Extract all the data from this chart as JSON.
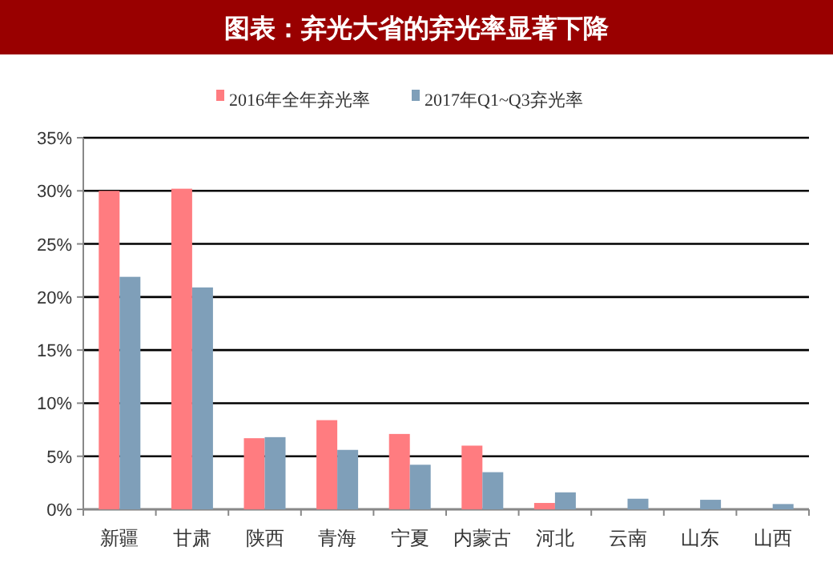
{
  "chart_data": {
    "type": "bar",
    "title": "图表：弃光大省的弃光率显著下降",
    "categories": [
      "新疆",
      "甘肃",
      "陕西",
      "青海",
      "宁夏",
      "内蒙古",
      "河北",
      "云南",
      "山东",
      "山西"
    ],
    "series": [
      {
        "name": "2016年全年弃光率",
        "color": "#ff7c80",
        "values": [
          30.0,
          30.2,
          6.7,
          8.4,
          7.1,
          6.0,
          0.6,
          null,
          null,
          null
        ]
      },
      {
        "name": "2017年Q1~Q3弃光率",
        "color": "#7f9fb9",
        "values": [
          21.9,
          20.9,
          6.8,
          5.6,
          4.2,
          3.5,
          1.6,
          1.0,
          0.9,
          0.5
        ]
      }
    ],
    "ylim": [
      0,
      35
    ],
    "yticks": [
      {
        "value": 0,
        "label": "0%"
      },
      {
        "value": 5,
        "label": "5%"
      },
      {
        "value": 10,
        "label": "10%"
      },
      {
        "value": 15,
        "label": "15%"
      },
      {
        "value": 20,
        "label": "20%"
      },
      {
        "value": 25,
        "label": "25%"
      },
      {
        "value": 30,
        "label": "30%"
      },
      {
        "value": 35,
        "label": "35%"
      }
    ],
    "grid": "y",
    "legend": "top"
  }
}
